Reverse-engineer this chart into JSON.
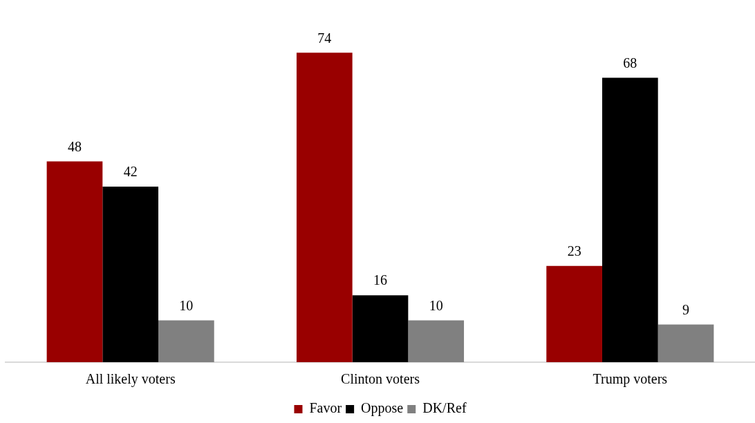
{
  "chart_data": {
    "type": "bar",
    "categories": [
      "All likely voters",
      "Clinton voters",
      "Trump voters"
    ],
    "series": [
      {
        "name": "Favor",
        "color": "#990000",
        "values": [
          48,
          74,
          23
        ]
      },
      {
        "name": "Oppose",
        "color": "#000000",
        "values": [
          42,
          16,
          68
        ]
      },
      {
        "name": "DK/Ref",
        "color": "#808080",
        "values": [
          10,
          10,
          9
        ]
      }
    ],
    "data_labels": true,
    "legend": "bottom",
    "grid": false
  }
}
